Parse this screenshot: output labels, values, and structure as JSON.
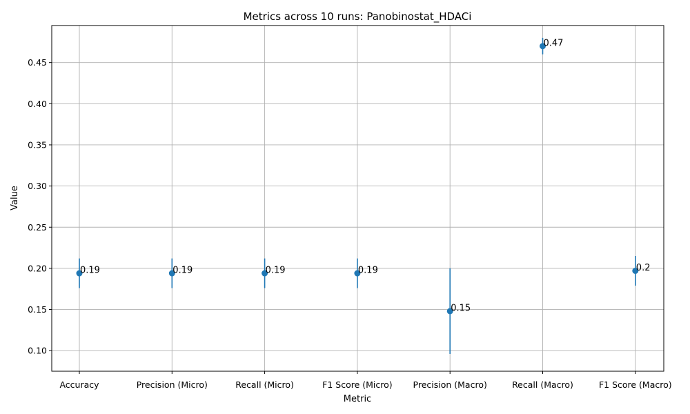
{
  "chart_data": {
    "type": "scatter",
    "title": "Metrics across 10 runs: Panobinostat_HDACi",
    "xlabel": "Metric",
    "ylabel": "Value",
    "categories": [
      "Accuracy",
      "Precision (Micro)",
      "Recall (Micro)",
      "F1 Score (Micro)",
      "Precision (Macro)",
      "Recall (Macro)",
      "F1 Score (Macro)"
    ],
    "values": [
      0.194,
      0.194,
      0.194,
      0.194,
      0.148,
      0.47,
      0.197
    ],
    "errors": [
      0.018,
      0.018,
      0.018,
      0.018,
      0.052,
      0.01,
      0.018
    ],
    "data_labels": [
      "0.19",
      "0.19",
      "0.19",
      "0.19",
      "0.15",
      "0.47",
      "0.2"
    ],
    "ylim": [
      0.075,
      0.495
    ],
    "yticks": [
      0.1,
      0.15,
      0.2,
      0.25,
      0.3,
      0.35,
      0.4,
      0.45
    ],
    "ytick_labels": [
      "0.10",
      "0.15",
      "0.20",
      "0.25",
      "0.30",
      "0.35",
      "0.40",
      "0.45"
    ],
    "grid": true,
    "colors": {
      "series": "#1f77b4",
      "grid": "#b0b0b0"
    }
  }
}
